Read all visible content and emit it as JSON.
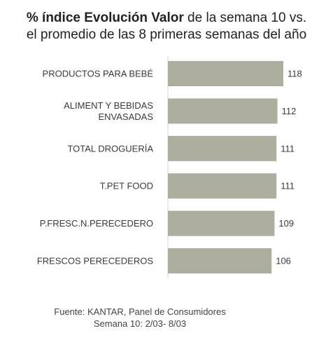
{
  "title": {
    "bold": "% índice Evolución Valor",
    "rest_line1": " de la semana 10 vs.",
    "line2": "el promedio de las 8 primeras semanas del año"
  },
  "chart_data": {
    "type": "bar",
    "orientation": "horizontal",
    "categories": [
      [
        "PRODUCTOS PARA BEBÉ"
      ],
      [
        "ALIMENT Y BEBIDAS",
        "ENVASADAS"
      ],
      [
        "TOTAL DROGUERÍA"
      ],
      [
        "T.PET FOOD"
      ],
      [
        "P.FRESC.N.PERECEDERO"
      ],
      [
        "FRESCOS PERECEDEROS"
      ]
    ],
    "values": [
      118,
      112,
      111,
      111,
      109,
      106
    ],
    "bar_color": "#aeae9f",
    "axis_color": "#d6d6d6",
    "xlim": [
      100,
      118
    ],
    "grid": false,
    "legend": "none"
  },
  "source": {
    "line1": "Fuente: KANTAR, Panel de Consumidores",
    "line2": "Semana 10: 2/03- 8/03"
  }
}
